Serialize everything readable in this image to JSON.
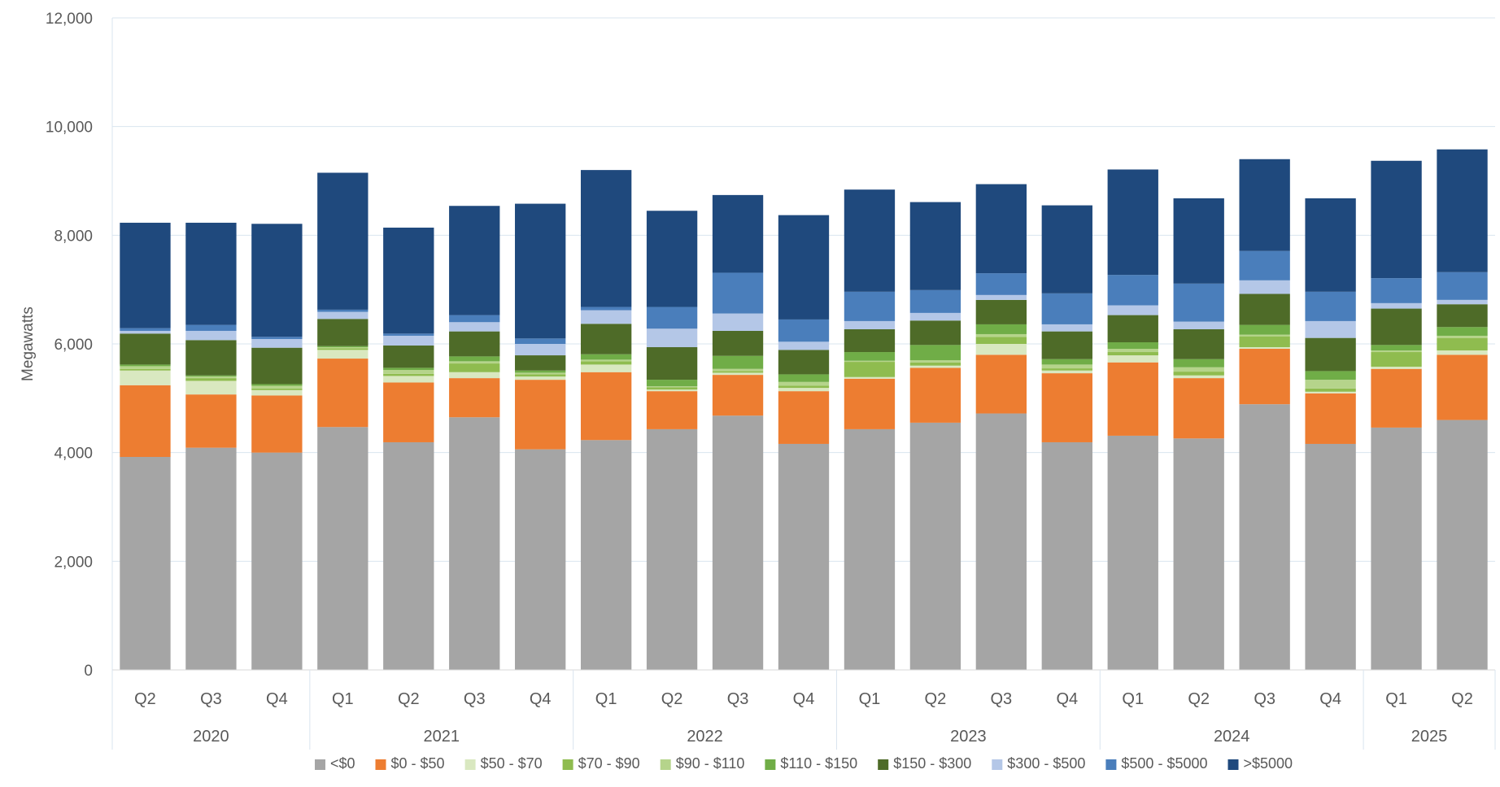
{
  "chart_data": {
    "type": "bar",
    "stacked": true,
    "ylabel": "Megawatts",
    "ylim": [
      0,
      12000
    ],
    "yticks": [
      "0",
      "2,000",
      "4,000",
      "6,000",
      "8,000",
      "10,000",
      "12,000"
    ],
    "ytick_values": [
      0,
      2000,
      4000,
      6000,
      8000,
      10000,
      12000
    ],
    "grid": true,
    "legend_position": "bottom",
    "categories": [
      "Q2",
      "Q3",
      "Q4",
      "Q1",
      "Q2",
      "Q3",
      "Q4",
      "Q1",
      "Q2",
      "Q3",
      "Q4",
      "Q1",
      "Q2",
      "Q3",
      "Q4",
      "Q1",
      "Q2",
      "Q3",
      "Q4",
      "Q1",
      "Q2"
    ],
    "year_groups": [
      {
        "label": "2020",
        "count": 3
      },
      {
        "label": "2021",
        "count": 4
      },
      {
        "label": "2022",
        "count": 4
      },
      {
        "label": "2023",
        "count": 4
      },
      {
        "label": "2024",
        "count": 4
      },
      {
        "label": "2025",
        "count": 2
      }
    ],
    "series": [
      {
        "name": "<$0",
        "color": "#a5a5a5",
        "values": [
          3920,
          4090,
          4000,
          4470,
          4190,
          4650,
          4060,
          4230,
          4430,
          4680,
          4160,
          4430,
          4550,
          4720,
          4190,
          4310,
          4260,
          4890,
          4160,
          4460,
          4600
        ]
      },
      {
        "name": "$0 - $50",
        "color": "#ed7d31",
        "values": [
          1320,
          980,
          1050,
          1260,
          1100,
          720,
          1280,
          1250,
          700,
          750,
          970,
          930,
          1010,
          1080,
          1270,
          1350,
          1110,
          1020,
          930,
          1080,
          1200
        ]
      },
      {
        "name": "$50 - $70",
        "color": "#d9e8c0",
        "values": [
          270,
          250,
          100,
          160,
          120,
          110,
          60,
          140,
          30,
          40,
          60,
          30,
          40,
          200,
          50,
          130,
          50,
          30,
          30,
          40,
          80
        ]
      },
      {
        "name": "$70 - $90",
        "color": "#8fbc4f",
        "values": [
          30,
          50,
          30,
          30,
          40,
          160,
          40,
          60,
          40,
          30,
          40,
          280,
          60,
          130,
          40,
          60,
          70,
          200,
          60,
          270,
          230
        ]
      },
      {
        "name": "$90 - $110",
        "color": "#b5d48b",
        "values": [
          50,
          30,
          50,
          20,
          70,
          40,
          30,
          30,
          20,
          40,
          70,
          20,
          40,
          50,
          70,
          60,
          80,
          30,
          160,
          30,
          40
        ]
      },
      {
        "name": "$110 - $150",
        "color": "#70ad47",
        "values": [
          30,
          20,
          30,
          20,
          40,
          90,
          40,
          100,
          120,
          240,
          140,
          160,
          280,
          180,
          100,
          120,
          150,
          180,
          160,
          100,
          160
        ]
      },
      {
        "name": "$150 - $300",
        "color": "#4e6b28",
        "values": [
          570,
          650,
          670,
          500,
          410,
          460,
          280,
          560,
          600,
          460,
          450,
          420,
          450,
          450,
          510,
          500,
          550,
          570,
          610,
          670,
          420
        ]
      },
      {
        "name": "$300 - $500",
        "color": "#b4c7e7",
        "values": [
          50,
          170,
          160,
          130,
          180,
          170,
          210,
          250,
          340,
          320,
          150,
          150,
          140,
          90,
          130,
          180,
          140,
          250,
          310,
          100,
          80
        ]
      },
      {
        "name": "$500 - $5000",
        "color": "#4a7ebb",
        "values": [
          50,
          110,
          40,
          40,
          40,
          130,
          100,
          60,
          400,
          750,
          410,
          540,
          420,
          400,
          570,
          560,
          700,
          540,
          540,
          460,
          510
        ]
      },
      {
        "name": ">$5000",
        "color": "#1f497d",
        "values": [
          1940,
          1880,
          2080,
          2520,
          1950,
          2010,
          2480,
          2520,
          1770,
          1430,
          1920,
          1880,
          1620,
          1640,
          1620,
          1940,
          1570,
          1690,
          1720,
          2160,
          2260
        ]
      }
    ]
  }
}
